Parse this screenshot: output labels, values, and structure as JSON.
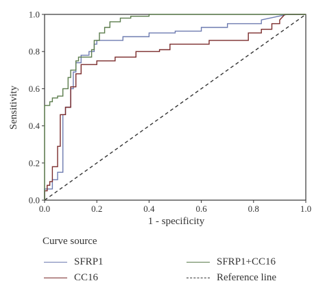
{
  "chart_data": {
    "type": "line",
    "title": "",
    "xlabel": "1 - specificity",
    "ylabel": "Sensitivity",
    "xlim": [
      0,
      1
    ],
    "ylim": [
      0,
      1
    ],
    "xticks": [
      "0.0",
      "0.2",
      "0.4",
      "0.6",
      "0.8",
      "1.0"
    ],
    "yticks": [
      "0.0",
      "0.2",
      "0.4",
      "0.6",
      "0.8",
      "1.0"
    ],
    "grid": false,
    "legend": {
      "title": "Curve source",
      "position": "bottom",
      "entries": [
        "SFRP1",
        "SFRP1+CC16",
        "CC16",
        "Reference line"
      ]
    },
    "series": [
      {
        "name": "SFRP1",
        "color": "#6d7bb0",
        "style": "solid",
        "x": [
          0,
          0,
          0.03,
          0.03,
          0.05,
          0.05,
          0.07,
          0.07,
          0.08,
          0.08,
          0.1,
          0.1,
          0.11,
          0.11,
          0.12,
          0.12,
          0.14,
          0.14,
          0.17,
          0.17,
          0.19,
          0.19,
          0.2,
          0.2,
          0.3,
          0.3,
          0.4,
          0.4,
          0.5,
          0.5,
          0.6,
          0.6,
          0.7,
          0.7,
          0.83,
          0.83,
          0.93,
          1.0
        ],
        "y": [
          0,
          0.06,
          0.06,
          0.11,
          0.11,
          0.15,
          0.15,
          0.46,
          0.46,
          0.5,
          0.5,
          0.6,
          0.6,
          0.69,
          0.69,
          0.74,
          0.74,
          0.78,
          0.78,
          0.8,
          0.8,
          0.84,
          0.84,
          0.86,
          0.86,
          0.88,
          0.88,
          0.9,
          0.9,
          0.91,
          0.91,
          0.93,
          0.93,
          0.95,
          0.95,
          0.97,
          1.0,
          1.0
        ]
      },
      {
        "name": "CC16",
        "color": "#7a2a2a",
        "style": "solid",
        "x": [
          0,
          0,
          0.01,
          0.01,
          0.02,
          0.02,
          0.03,
          0.03,
          0.05,
          0.05,
          0.06,
          0.06,
          0.08,
          0.08,
          0.1,
          0.1,
          0.12,
          0.12,
          0.14,
          0.14,
          0.2,
          0.2,
          0.27,
          0.27,
          0.35,
          0.35,
          0.44,
          0.44,
          0.48,
          0.48,
          0.63,
          0.63,
          0.78,
          0.78,
          0.83,
          0.83,
          0.87,
          0.87,
          0.9,
          0.9,
          0.92,
          1.0
        ],
        "y": [
          0,
          0.05,
          0.05,
          0.08,
          0.08,
          0.1,
          0.1,
          0.18,
          0.18,
          0.29,
          0.29,
          0.46,
          0.46,
          0.5,
          0.5,
          0.61,
          0.61,
          0.68,
          0.68,
          0.73,
          0.73,
          0.75,
          0.75,
          0.77,
          0.77,
          0.8,
          0.8,
          0.81,
          0.81,
          0.84,
          0.84,
          0.86,
          0.86,
          0.9,
          0.9,
          0.92,
          0.92,
          0.95,
          0.95,
          0.97,
          1.0,
          1.0
        ]
      },
      {
        "name": "SFRP1+CC16",
        "color": "#5b7c4c",
        "style": "solid",
        "x": [
          0,
          0,
          0.02,
          0.02,
          0.03,
          0.03,
          0.05,
          0.05,
          0.07,
          0.07,
          0.09,
          0.09,
          0.1,
          0.1,
          0.12,
          0.12,
          0.13,
          0.13,
          0.18,
          0.18,
          0.19,
          0.19,
          0.21,
          0.21,
          0.23,
          0.23,
          0.25,
          0.25,
          0.29,
          0.29,
          0.33,
          0.33,
          0.4,
          0.4,
          1.0
        ],
        "y": [
          0,
          0.51,
          0.51,
          0.53,
          0.53,
          0.55,
          0.55,
          0.56,
          0.56,
          0.6,
          0.6,
          0.66,
          0.66,
          0.7,
          0.7,
          0.75,
          0.75,
          0.77,
          0.77,
          0.81,
          0.81,
          0.86,
          0.86,
          0.9,
          0.9,
          0.93,
          0.93,
          0.96,
          0.96,
          0.98,
          0.98,
          0.99,
          0.99,
          1.0,
          1.0
        ]
      },
      {
        "name": "Reference line",
        "color": "#333333",
        "style": "dashed",
        "x": [
          0,
          1
        ],
        "y": [
          0,
          1
        ]
      }
    ]
  }
}
